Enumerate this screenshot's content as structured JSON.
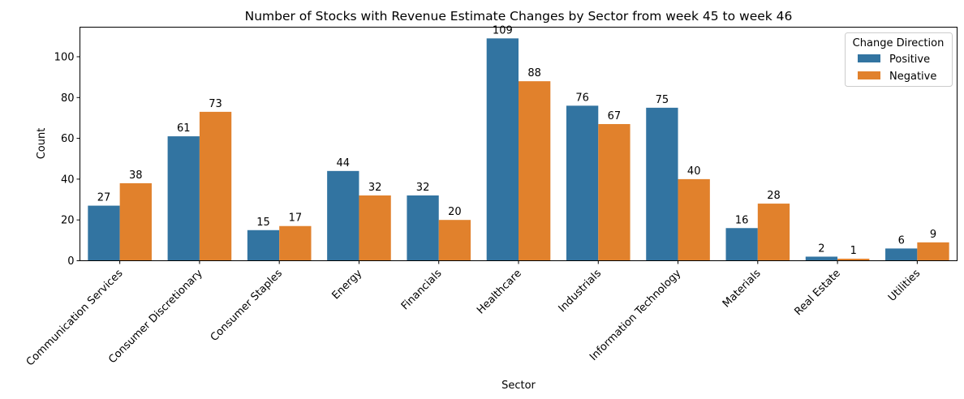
{
  "chart_data": {
    "type": "bar",
    "title": "Number of Stocks with Revenue Estimate Changes by Sector from week 45 to week 46",
    "xlabel": "Sector",
    "ylabel": "Count",
    "ylim": [
      0,
      114.5
    ],
    "yticks": [
      0,
      20,
      40,
      60,
      80,
      100
    ],
    "grid": false,
    "categories": [
      "Communication Services",
      "Consumer Discretionary",
      "Consumer Staples",
      "Energy",
      "Financials",
      "Healthcare",
      "Industrials",
      "Information Technology",
      "Materials",
      "Real Estate",
      "Utilities"
    ],
    "series": [
      {
        "name": "Positive",
        "color": "#3274a1",
        "values": [
          27,
          61,
          15,
          44,
          32,
          109,
          76,
          75,
          16,
          2,
          6
        ]
      },
      {
        "name": "Negative",
        "color": "#e1812c",
        "values": [
          38,
          73,
          17,
          32,
          20,
          88,
          67,
          40,
          28,
          1,
          9
        ]
      }
    ],
    "legend": {
      "title": "Change Direction",
      "placement": "top-right"
    }
  }
}
